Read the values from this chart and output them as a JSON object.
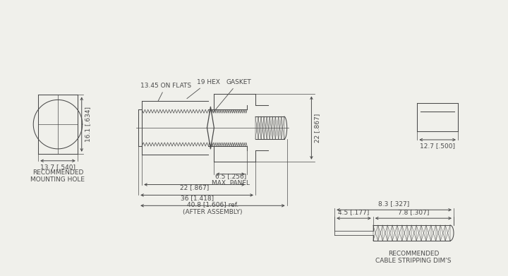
{
  "bg_color": "#f0f0eb",
  "line_color": "#4a4a4a",
  "annotations": {
    "hex_label": "19 HEX",
    "flats_label": "13.45 ON FLATS",
    "gasket_label": "GASKET",
    "mounting_hole_label": "RECOMMENDED\nMOUNTING HOLE",
    "cable_stripping_label": "RECOMMENDED\nCABLE STRIPPING DIM'S",
    "dim_16_1": "16.1 [.634]",
    "dim_13_7": "13.7 [.540]",
    "dim_22_vert": "22 [.867]",
    "dim_6_5": "6.5 [.256]\nMAX. PANEL",
    "dim_22_horiz": "22 [.867]",
    "dim_36": "36 [1.418]",
    "dim_40_8": "40.8 [1.606] ref.\n(AFTER ASSEMBLY)",
    "dim_12_7": "12.7 [.500]",
    "dim_7_8": "7.8 [.307]",
    "dim_4_5": "4.5 [.177]",
    "dim_8_3": "8.3 [.327]"
  }
}
